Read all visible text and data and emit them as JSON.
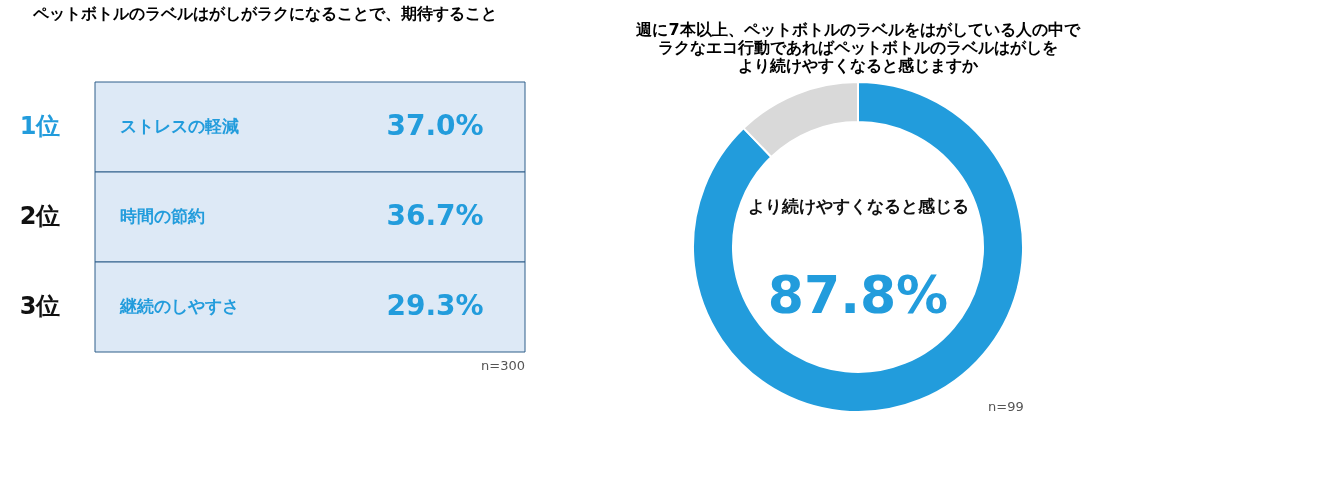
{
  "chart_data": [
    {
      "type": "other",
      "title": "ペットボトルのラベルはがしがラクになることで、期待すること",
      "categories": [
        "ストレスの軽減",
        "時間の節約",
        "継続のしやすさ"
      ],
      "values": [
        37.0,
        36.7,
        29.3
      ],
      "value_labels": [
        "37.0%",
        "36.7%",
        "29.3%"
      ],
      "annotations": [
        "1位",
        "2位",
        "3位",
        "n=300"
      ]
    },
    {
      "type": "donut",
      "title": [
        "週に7本以上、ペットボトルのラベルをはがしている人の中で",
        "ラクなエコ行動であればペットボトルのラベルはがしを",
        "より続けやすくなると感じますか"
      ],
      "categories": [
        "より続けやすくなると感じる",
        null
      ],
      "values": [
        87.8,
        12.2
      ],
      "colors": [
        "#229cdc",
        "#d9d9d9"
      ],
      "value_labels": [
        "87.8%",
        null
      ],
      "legend": false,
      "annotations": [
        "n=99"
      ]
    }
  ]
}
